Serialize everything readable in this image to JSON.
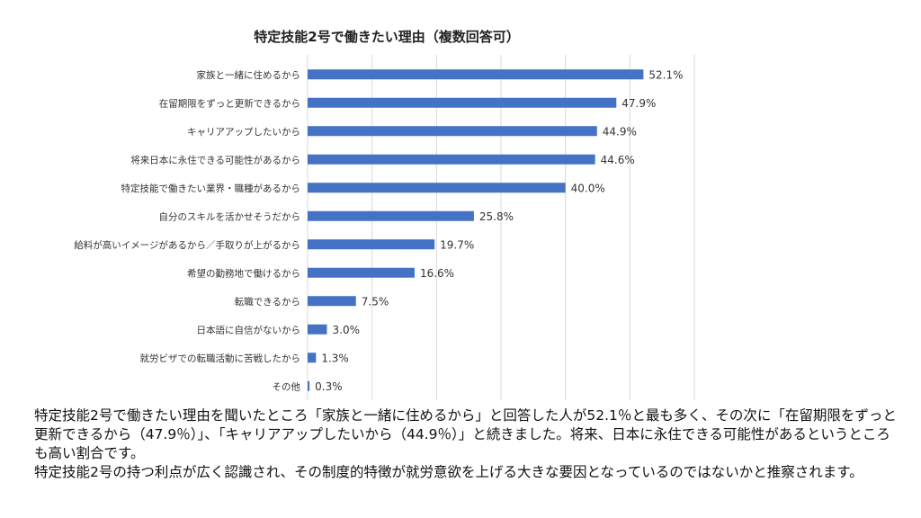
{
  "chart_data": {
    "type": "bar",
    "orientation": "horizontal",
    "title": "特定技能2号で働きたい理由（複数回答可）",
    "categories": [
      "家族と一緒に住めるから",
      "在留期限をずっと更新できるから",
      "キャリアアップしたいから",
      "将来日本に永住できる可能性があるから",
      "特定技能で働きたい業界・職種があるから",
      "自分のスキルを活かせそうだから",
      "給料が高いイメージがあるから／手取りが上がるから",
      "希望の勤務地で働けるから",
      "転職できるから",
      "日本語に自信がないから",
      "就労ビザでの転職活動に苦戦したから",
      "その他"
    ],
    "values": [
      52.1,
      47.9,
      44.9,
      44.6,
      40.0,
      25.8,
      19.7,
      16.6,
      7.5,
      3.0,
      1.3,
      0.3
    ],
    "data_labels": [
      "52.1%",
      "47.9%",
      "44.9%",
      "44.6%",
      "40.0%",
      "25.8%",
      "19.7%",
      "16.6%",
      "7.5%",
      "3.0%",
      "1.3%",
      "0.3%"
    ],
    "xlim": [
      0,
      60
    ],
    "grid": true,
    "bar_color": "#4472c4",
    "grid_color": "#d9d9d9"
  },
  "caption": {
    "paragraph1": "特定技能2号で働きたい理由を聞いたところ「家族と一緒に住めるから」と回答した人が52.1％と最も多く、その次に「在留期限をずっと更新できるから（47.9％）」、「キャリアアップしたいから（44.9％）」と続きました。将来、日本に永住できる可能性があるというところも高い割合です。",
    "paragraph2": "特定技能2号の持つ利点が広く認識され、その制度的特徴が就労意欲を上げる大きな要因となっているのではないかと推察されます。"
  }
}
